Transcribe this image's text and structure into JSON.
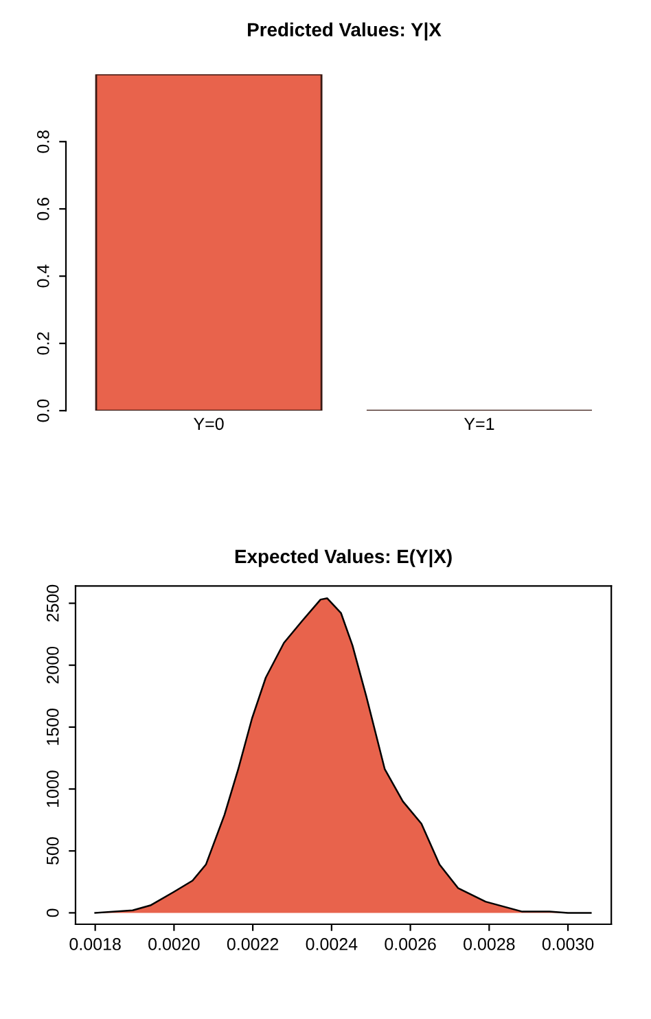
{
  "chart_data": [
    {
      "type": "bar",
      "title": "Predicted Values: Y|X",
      "categories": [
        "Y=0",
        "Y=1"
      ],
      "values": [
        1.0,
        0.0
      ],
      "color": "#e8634c",
      "ylim": [
        0,
        1.0
      ],
      "yticks": [
        {
          "value": 0,
          "label": "0.0"
        },
        0.2,
        0.4,
        0.6,
        0.8
      ],
      "grid": false,
      "legend": false
    },
    {
      "type": "area",
      "title": "Expected Values: E(Y|X)",
      "x": [
        0.0018,
        0.001895,
        0.00194,
        0.002,
        0.002047,
        0.002081,
        0.002128,
        0.002163,
        0.002198,
        0.002233,
        0.002279,
        0.002326,
        0.002372,
        0.002389,
        0.002424,
        0.002453,
        0.002488,
        0.002535,
        0.002581,
        0.002628,
        0.002674,
        0.002721,
        0.002791,
        0.002884,
        0.002953,
        0.003,
        0.003058
      ],
      "values": [
        0,
        20,
        60,
        170,
        260,
        390,
        790,
        1160,
        1570,
        1900,
        2180,
        2360,
        2530,
        2540,
        2420,
        2160,
        1750,
        1160,
        900,
        720,
        390,
        200,
        90,
        10,
        10,
        0,
        0
      ],
      "color": "#e8634c",
      "xlim": [
        0.00175,
        0.00311
      ],
      "ylim": [
        -92,
        2640
      ],
      "xticks": [
        {
          "value": 0.0018,
          "label": "0.0018"
        },
        {
          "value": 0.002,
          "label": "0.0020"
        },
        {
          "value": 0.0022,
          "label": "0.0022"
        },
        {
          "value": 0.0024,
          "label": "0.0024"
        },
        {
          "value": 0.0026,
          "label": "0.0026"
        },
        {
          "value": 0.0028,
          "label": "0.0028"
        },
        {
          "value": 0.003,
          "label": "0.0030"
        }
      ],
      "yticks": [
        0,
        500,
        1000,
        1500,
        2000,
        2500
      ],
      "grid": false,
      "legend": false
    }
  ]
}
